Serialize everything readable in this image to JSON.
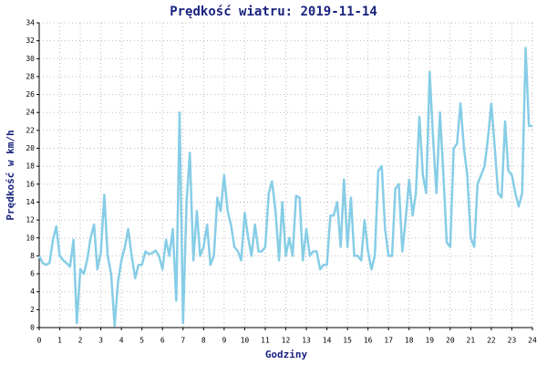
{
  "chart_data": {
    "type": "line",
    "title": "Prędkość wiatru: 2019-11-14",
    "x_label": "Godziny",
    "y_label": "Prędkość w km/h",
    "xlim": [
      0,
      24
    ],
    "ylim": [
      0,
      34
    ],
    "xticks": [
      0,
      1,
      2,
      3,
      4,
      5,
      6,
      7,
      8,
      9,
      10,
      11,
      12,
      13,
      14,
      15,
      16,
      17,
      18,
      19,
      20,
      21,
      22,
      23,
      24
    ],
    "yticks": [
      0,
      2,
      4,
      6,
      8,
      10,
      12,
      14,
      16,
      18,
      20,
      22,
      24,
      26,
      28,
      30,
      32,
      34
    ],
    "grid": true,
    "x": [
      0,
      0.17,
      0.33,
      0.5,
      0.67,
      0.83,
      1,
      1.17,
      1.33,
      1.5,
      1.67,
      1.83,
      2,
      2.17,
      2.33,
      2.5,
      2.67,
      2.83,
      3,
      3.17,
      3.33,
      3.5,
      3.67,
      3.83,
      4,
      4.17,
      4.33,
      4.5,
      4.67,
      4.83,
      5,
      5.17,
      5.33,
      5.5,
      5.67,
      5.83,
      6,
      6.17,
      6.33,
      6.5,
      6.67,
      6.83,
      7,
      7.17,
      7.33,
      7.5,
      7.67,
      7.83,
      8,
      8.17,
      8.33,
      8.5,
      8.67,
      8.83,
      9,
      9.17,
      9.33,
      9.5,
      9.67,
      9.83,
      10,
      10.17,
      10.33,
      10.5,
      10.67,
      10.83,
      11,
      11.17,
      11.33,
      11.5,
      11.67,
      11.83,
      12,
      12.17,
      12.33,
      12.5,
      12.67,
      12.83,
      13,
      13.17,
      13.33,
      13.5,
      13.67,
      13.83,
      14,
      14.17,
      14.33,
      14.5,
      14.67,
      14.83,
      15,
      15.17,
      15.33,
      15.5,
      15.67,
      15.83,
      16,
      16.17,
      16.33,
      16.5,
      16.67,
      16.83,
      17,
      17.17,
      17.33,
      17.5,
      17.67,
      17.83,
      18,
      18.17,
      18.33,
      18.5,
      18.67,
      18.83,
      19,
      19.17,
      19.33,
      19.5,
      19.67,
      19.83,
      20,
      20.17,
      20.33,
      20.5,
      20.67,
      20.83,
      21,
      21.17,
      21.33,
      21.5,
      21.67,
      21.83,
      22,
      22.17,
      22.33,
      22.5,
      22.67,
      22.83,
      23,
      23.17,
      23.33,
      23.5,
      23.67,
      23.83,
      24
    ],
    "series": [
      {
        "name": "Prędkość",
        "color": "#87cde6",
        "values": [
          8.0,
          7.2,
          7.0,
          7.2,
          9.8,
          11.3,
          8.0,
          7.5,
          7.2,
          6.8,
          9.8,
          0.5,
          6.5,
          6.0,
          7.5,
          10.0,
          11.5,
          6.5,
          8.4,
          14.8,
          8.0,
          6.0,
          0.2,
          5.0,
          7.5,
          9.0,
          11.0,
          8.0,
          5.5,
          7.0,
          7.0,
          8.5,
          8.2,
          8.3,
          8.6,
          8.0,
          6.5,
          9.8,
          8.0,
          11.0,
          3.0,
          24.0,
          0.5,
          14.0,
          19.5,
          7.5,
          13.0,
          8.0,
          9.0,
          11.5,
          7.0,
          8.0,
          14.5,
          13.0,
          17.0,
          13.0,
          11.5,
          9.0,
          8.5,
          7.5,
          12.8,
          10.0,
          8.0,
          11.5,
          8.5,
          8.5,
          9.0,
          15.0,
          16.3,
          13.0,
          7.5,
          14.0,
          8.0,
          10.0,
          8.0,
          14.7,
          14.5,
          7.5,
          11.0,
          8.0,
          8.5,
          8.5,
          6.5,
          7.0,
          7.0,
          12.5,
          12.5,
          14.0,
          9.0,
          16.5,
          9.0,
          14.5,
          8.0,
          8.0,
          7.5,
          12.0,
          8.5,
          6.5,
          8.0,
          17.5,
          18.0,
          11.0,
          8.0,
          8.0,
          15.5,
          16.0,
          8.5,
          12.0,
          16.5,
          12.5,
          15.0,
          23.5,
          17.0,
          15.0,
          28.5,
          21.0,
          15.0,
          24.0,
          17.0,
          9.5,
          9.0,
          20.0,
          20.5,
          25.0,
          20.0,
          17.0,
          10.0,
          9.0,
          16.0,
          17.0,
          18.0,
          21.0,
          25.0,
          20.0,
          15.0,
          14.5,
          23.0,
          17.5,
          17.0,
          15.0,
          13.5,
          15.0,
          31.2,
          22.5,
          22.5
        ]
      }
    ]
  }
}
